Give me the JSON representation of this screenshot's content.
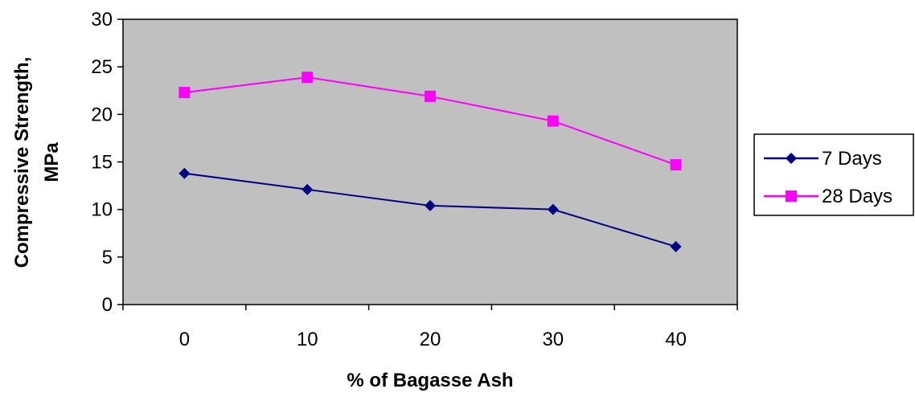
{
  "chart_data": {
    "type": "line",
    "xlabel": "% of Bagasse Ash",
    "ylabel_lines": [
      "Compressive Strength,",
      "MPa"
    ],
    "categories": [
      "0",
      "10",
      "20",
      "30",
      "40"
    ],
    "ylim": [
      0,
      30
    ],
    "yticks": [
      "0",
      "5",
      "10",
      "15",
      "20",
      "25",
      "30"
    ],
    "grid": false,
    "legend_position": "right",
    "plot_background": "#c0c0c0",
    "series": [
      {
        "name": "7 Days",
        "values": [
          13.8,
          12.1,
          10.4,
          10.0,
          6.1
        ],
        "color": "#000080",
        "marker": "diamond"
      },
      {
        "name": "28 Days",
        "values": [
          22.3,
          23.9,
          21.9,
          19.3,
          14.7
        ],
        "color": "#ff00ff",
        "marker": "square"
      }
    ]
  }
}
